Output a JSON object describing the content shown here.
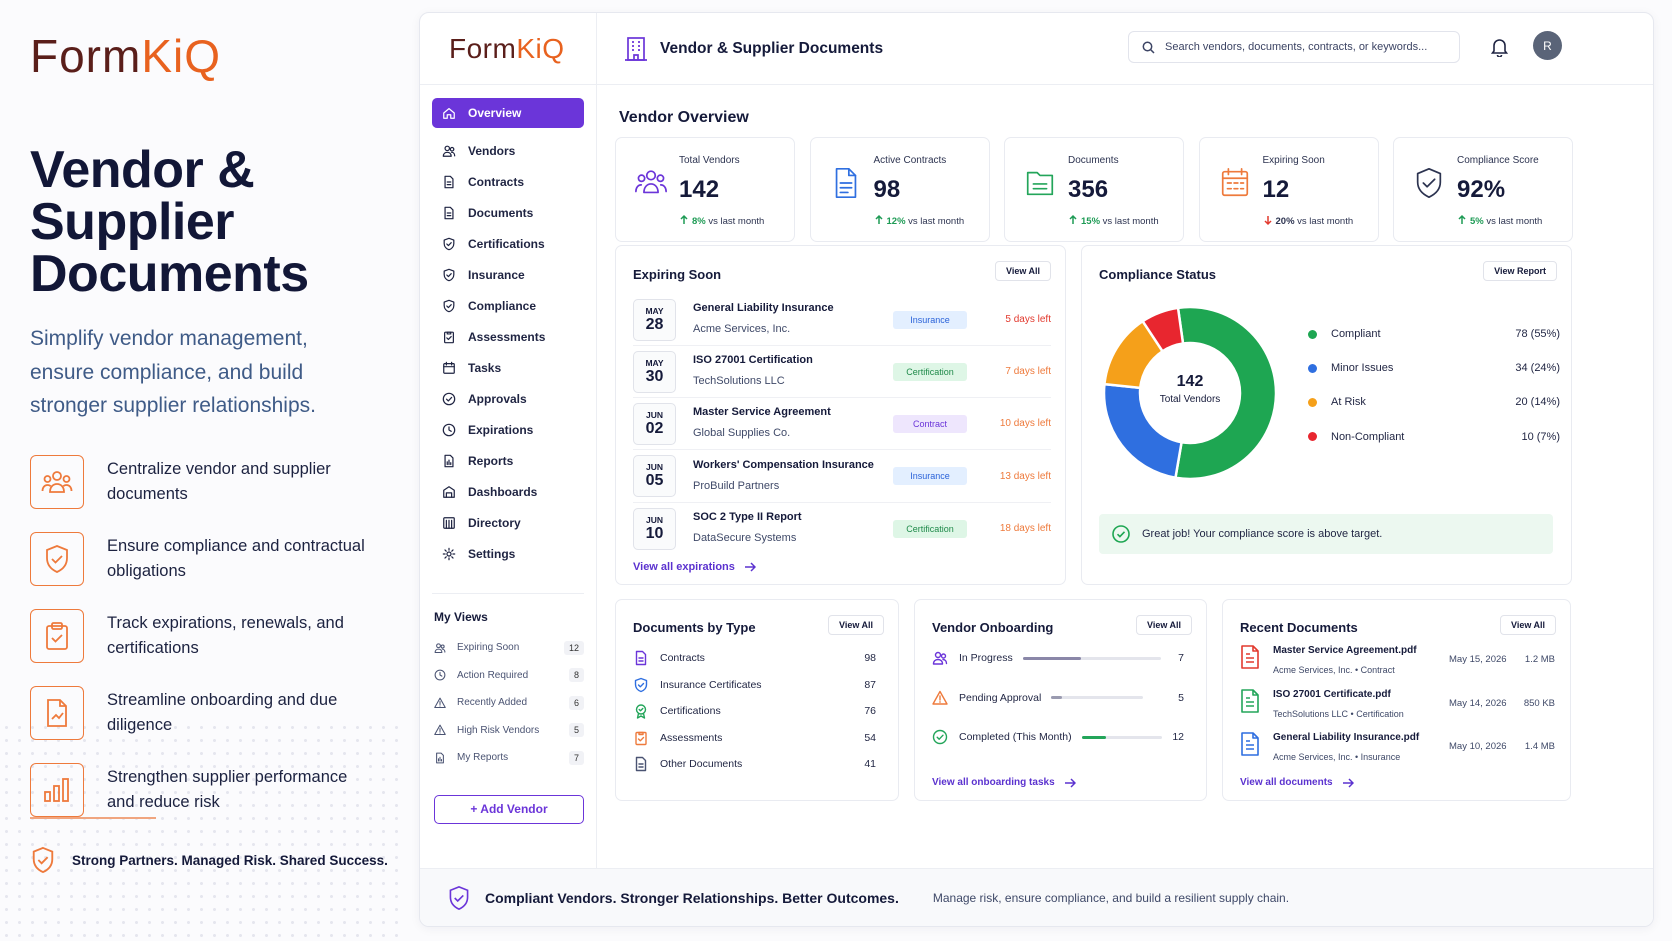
{
  "marketing": {
    "brand_a": "Form",
    "brand_b": "KiQ",
    "headline_1": "Vendor &",
    "headline_2": "Supplier",
    "headline_3": "Documents",
    "tagline": "Simplify vendor management, ensure compliance, and build stronger supplier relationships.",
    "features": [
      {
        "icon": "people-icon",
        "text": "Centralize vendor and supplier documents"
      },
      {
        "icon": "shield-check-icon",
        "text": "Ensure compliance and contractual obligations"
      },
      {
        "icon": "clipboard-check-icon",
        "text": "Track expirations, renewals, and certifications"
      },
      {
        "icon": "document-chart-icon",
        "text": "Streamline onboarding and due diligence"
      },
      {
        "icon": "bar-chart-icon",
        "text": "Strengthen supplier performance and reduce risk"
      }
    ],
    "footer": "Strong Partners. Managed Risk. Shared Success."
  },
  "app": {
    "logo_a": "Form",
    "logo_b": "KiQ",
    "header_title": "Vendor & Supplier Documents",
    "search_placeholder": "Search vendors, documents, contracts, or keywords...",
    "avatar_initial": "R",
    "nav": [
      {
        "label": "Overview",
        "icon": "home-icon",
        "active": true
      },
      {
        "label": "Vendors",
        "icon": "users-icon"
      },
      {
        "label": "Contracts",
        "icon": "file-icon"
      },
      {
        "label": "Documents",
        "icon": "file-icon"
      },
      {
        "label": "Certifications",
        "icon": "shield-icon"
      },
      {
        "label": "Insurance",
        "icon": "shield-icon"
      },
      {
        "label": "Compliance",
        "icon": "shield-icon"
      },
      {
        "label": "Assessments",
        "icon": "clipboard-icon"
      },
      {
        "label": "Tasks",
        "icon": "calendar-icon"
      },
      {
        "label": "Approvals",
        "icon": "check-circle-icon"
      },
      {
        "label": "Expirations",
        "icon": "clock-icon"
      },
      {
        "label": "Reports",
        "icon": "report-icon"
      },
      {
        "label": "Dashboards",
        "icon": "dashboard-icon"
      },
      {
        "label": "Directory",
        "icon": "directory-icon"
      },
      {
        "label": "Settings",
        "icon": "gear-icon"
      }
    ],
    "my_views_title": "My Views",
    "my_views": [
      {
        "label": "Expiring Soon",
        "count": "12"
      },
      {
        "label": "Action Required",
        "count": "8"
      },
      {
        "label": "Recently Added",
        "count": "6"
      },
      {
        "label": "High Risk Vendors",
        "count": "5"
      },
      {
        "label": "My Reports",
        "count": "7"
      }
    ],
    "add_vendor": "+  Add Vendor",
    "overview_title": "Vendor Overview",
    "kpis": [
      {
        "label": "Total Vendors",
        "value": "142",
        "delta": "8%",
        "suffix": "vs last month",
        "dir": "up",
        "color": "#6b35d9"
      },
      {
        "label": "Active Contracts",
        "value": "98",
        "delta": "12%",
        "suffix": "vs last month",
        "dir": "up",
        "color": "#2f6fe0"
      },
      {
        "label": "Documents",
        "value": "356",
        "delta": "15%",
        "suffix": "vs last month",
        "dir": "up",
        "color": "#23a55a"
      },
      {
        "label": "Expiring Soon",
        "value": "12",
        "delta": "20%",
        "suffix": "vs last month",
        "dir": "down",
        "color": "#ee7a3c"
      },
      {
        "label": "Compliance Score",
        "value": "92%",
        "delta": "5%",
        "suffix": "vs last month",
        "dir": "up",
        "color": "#2c3350"
      }
    ],
    "expiring": {
      "title": "Expiring Soon",
      "view_all": "View All",
      "items": [
        {
          "month": "MAY",
          "day": "28",
          "name": "General Liability Insurance",
          "vendor": "Acme Services, Inc.",
          "tag": "Insurance",
          "tag_type": "ins",
          "days": "5 days left",
          "days_color": "#e23a2f"
        },
        {
          "month": "MAY",
          "day": "30",
          "name": "ISO 27001 Certification",
          "vendor": "TechSolutions LLC",
          "tag": "Certification",
          "tag_type": "cer",
          "days": "7 days left",
          "days_color": "#ee7a3c"
        },
        {
          "month": "JUN",
          "day": "02",
          "name": "Master Service Agreement",
          "vendor": "Global Supplies Co.",
          "tag": "Contract",
          "tag_type": "con",
          "days": "10 days left",
          "days_color": "#ee7a3c"
        },
        {
          "month": "JUN",
          "day": "05",
          "name": "Workers' Compensation Insurance",
          "vendor": "ProBuild Partners",
          "tag": "Insurance",
          "tag_type": "ins",
          "days": "13 days left",
          "days_color": "#ee7a3c"
        },
        {
          "month": "JUN",
          "day": "10",
          "name": "SOC 2 Type II Report",
          "vendor": "DataSecure Systems",
          "tag": "Certification",
          "tag_type": "cer",
          "days": "18 days left",
          "days_color": "#ee7a3c"
        }
      ],
      "link": "View all expirations"
    },
    "compliance": {
      "title": "Compliance Status",
      "view_report": "View Report",
      "center_value": "142",
      "center_label": "Total Vendors",
      "ok_message": "Great job! Your compliance score is above target."
    },
    "docs_by_type": {
      "title": "Documents by Type",
      "view_all": "View All",
      "items": [
        {
          "label": "Contracts",
          "value": "98",
          "icon": "file-icon",
          "color": "#6b35d9"
        },
        {
          "label": "Insurance Certificates",
          "value": "87",
          "icon": "shield-icon",
          "color": "#2f6fe0"
        },
        {
          "label": "Certifications",
          "value": "76",
          "icon": "badge-icon",
          "color": "#23a55a"
        },
        {
          "label": "Assessments",
          "value": "54",
          "icon": "clipboard-icon",
          "color": "#ee7a3c"
        },
        {
          "label": "Other Documents",
          "value": "41",
          "icon": "file-icon",
          "color": "#4a5372"
        }
      ]
    },
    "onboarding": {
      "title": "Vendor Onboarding",
      "view_all": "View All",
      "items": [
        {
          "label": "In Progress",
          "value": "7",
          "progress": 0.42,
          "color": "#8a87a8",
          "icon": "users-icon",
          "icon_color": "#6b35d9"
        },
        {
          "label": "Pending Approval",
          "value": "5",
          "progress": 0.12,
          "color": "#9a9bb0",
          "icon": "warning-icon",
          "icon_color": "#ee7a3c"
        },
        {
          "label": "Completed (This Month)",
          "value": "12",
          "progress": 0.3,
          "color": "#23a55a",
          "icon": "check-circle-icon",
          "icon_color": "#23a55a"
        }
      ],
      "link": "View all onboarding tasks"
    },
    "recent_docs": {
      "title": "Recent Documents",
      "view_all": "View All",
      "items": [
        {
          "name": "Master Service Agreement.pdf",
          "meta": "Acme Services, Inc.  •  Contract",
          "date": "May 15, 2026",
          "size": "1.2 MB",
          "color": "#e23a2f"
        },
        {
          "name": "ISO 27001 Certificate.pdf",
          "meta": "TechSolutions LLC  •  Certification",
          "date": "May 14, 2026",
          "size": "850 KB",
          "color": "#23a55a"
        },
        {
          "name": "General Liability Insurance.pdf",
          "meta": "Acme Services, Inc.  •  Insurance",
          "date": "May 10, 2026",
          "size": "1.4 MB",
          "color": "#2f6fe0"
        }
      ],
      "link": "View all documents"
    },
    "footer_bold": "Compliant Vendors. Stronger Relationships. Better Outcomes.",
    "footer_text": "Manage risk, ensure compliance, and build a resilient supply chain."
  },
  "chart_data": {
    "type": "pie",
    "categories": [
      "Compliant",
      "Minor Issues",
      "At Risk",
      "Non-Compliant"
    ],
    "values": [
      78,
      34,
      20,
      10
    ],
    "labels": [
      "78 (55%)",
      "34 (24%)",
      "20 (14%)",
      "10 (7%)"
    ],
    "colors": [
      "#1ea652",
      "#2f6fe0",
      "#f5a01a",
      "#e8262f"
    ]
  }
}
